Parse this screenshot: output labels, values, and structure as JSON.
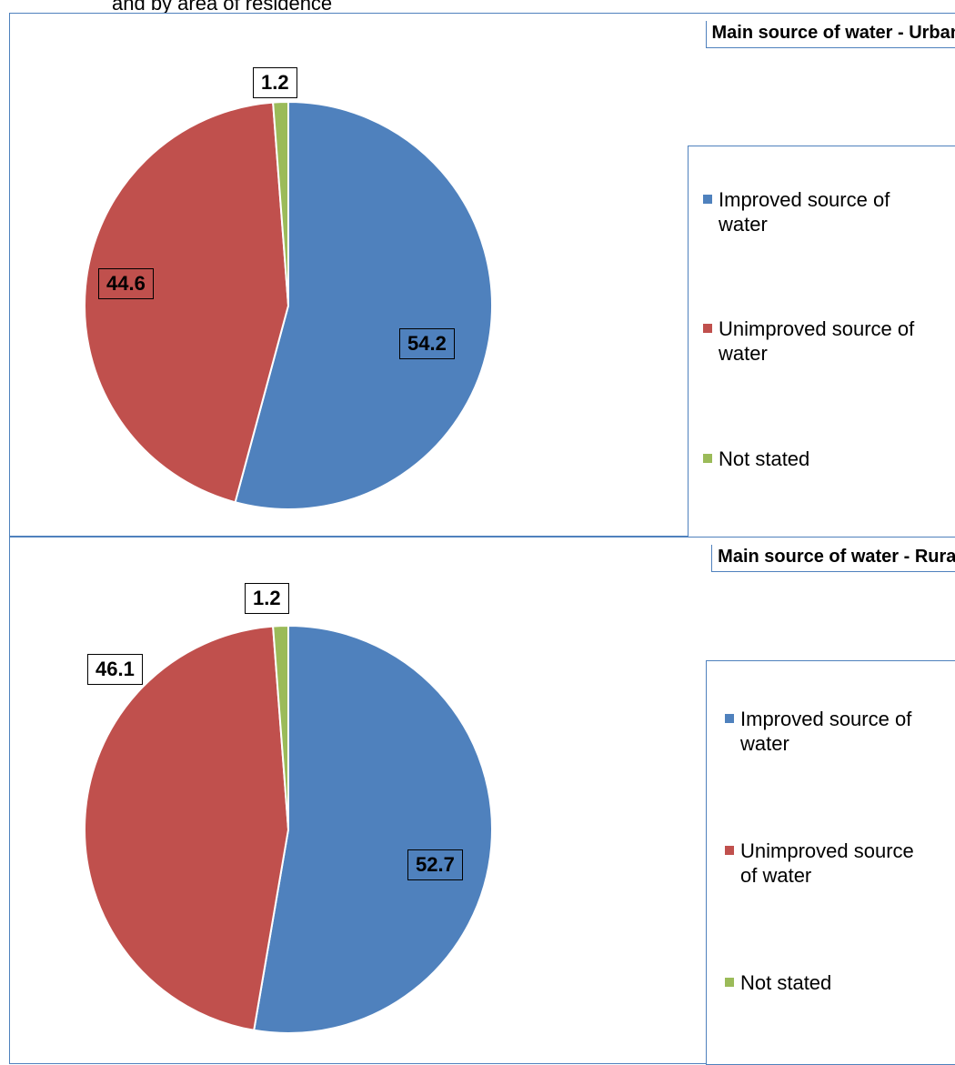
{
  "caption": "and by area of residence",
  "colors": {
    "improved": "#4f81bd",
    "unimproved": "#c0504d",
    "not_stated": "#9bbb59",
    "border": "#4f81bd"
  },
  "chart_data": [
    {
      "type": "pie",
      "title": "Main source of water - Urban",
      "categories": [
        "Improved source of water",
        "Unimproved source of water",
        "Not stated"
      ],
      "values": [
        54.2,
        44.6,
        1.2
      ],
      "data_labels": [
        "54.2",
        "44.6",
        "1.2"
      ],
      "legend_labels": [
        [
          "Improved source of",
          "water"
        ],
        [
          "Unimproved source of",
          "water"
        ],
        [
          "Not stated"
        ]
      ],
      "legend_placement": "right"
    },
    {
      "type": "pie",
      "title": "Main source of water - Rural",
      "categories": [
        "Improved source of water",
        "Unimproved source of water",
        "Not stated"
      ],
      "values": [
        52.7,
        46.1,
        1.2
      ],
      "data_labels": [
        "52.7",
        "46.1",
        "1.2"
      ],
      "legend_labels": [
        [
          "Improved source of",
          "water"
        ],
        [
          "Unimproved source",
          "of water"
        ],
        [
          "Not stated"
        ]
      ],
      "legend_placement": "right"
    }
  ]
}
